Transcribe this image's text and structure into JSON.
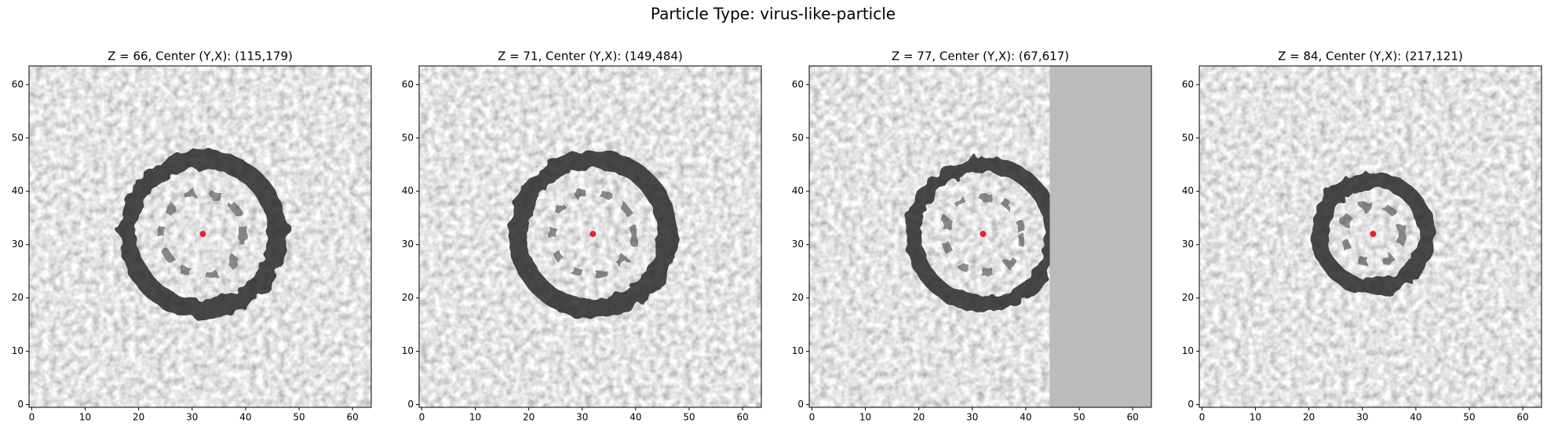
{
  "title": "Particle Type: virus-like-particle",
  "chart_data": [
    {
      "type": "image",
      "title": "Z = 66, Center (Y,X): (115,179)",
      "xlim": [
        -0.5,
        63.5
      ],
      "ylim": [
        -0.5,
        63.5
      ],
      "xticks": [
        0,
        10,
        20,
        30,
        40,
        50,
        60
      ],
      "yticks": [
        0,
        10,
        20,
        30,
        40,
        50,
        60
      ],
      "series": [
        {
          "color": "#e8212b",
          "x": [
            32
          ],
          "y": [
            32
          ]
        }
      ]
    },
    {
      "type": "image",
      "title": "Z = 71, Center (Y,X): (149,484)",
      "xlim": [
        -0.5,
        63.5
      ],
      "ylim": [
        -0.5,
        63.5
      ],
      "xticks": [
        0,
        10,
        20,
        30,
        40,
        50,
        60
      ],
      "yticks": [
        0,
        10,
        20,
        30,
        40,
        50,
        60
      ],
      "series": [
        {
          "color": "#e8212b",
          "x": [
            32
          ],
          "y": [
            32
          ]
        }
      ]
    },
    {
      "type": "image",
      "title": "Z = 77, Center (Y,X): (67,617)",
      "xlim": [
        -0.5,
        63.5
      ],
      "ylim": [
        -0.5,
        63.5
      ],
      "xticks": [
        0,
        10,
        20,
        30,
        40,
        50,
        60
      ],
      "yticks": [
        0,
        10,
        20,
        30,
        40,
        50,
        60
      ],
      "series": [
        {
          "color": "#e8212b",
          "x": [
            32
          ],
          "y": [
            32
          ]
        }
      ]
    },
    {
      "type": "image",
      "title": "Z = 84, Center (Y,X): (217,121)",
      "xlim": [
        -0.5,
        63.5
      ],
      "ylim": [
        -0.5,
        63.5
      ],
      "xticks": [
        0,
        10,
        20,
        30,
        40,
        50,
        60
      ],
      "yticks": [
        0,
        10,
        20,
        30,
        40,
        50,
        60
      ],
      "series": [
        {
          "color": "#e8212b",
          "x": [
            32
          ],
          "y": [
            32
          ]
        }
      ]
    }
  ]
}
